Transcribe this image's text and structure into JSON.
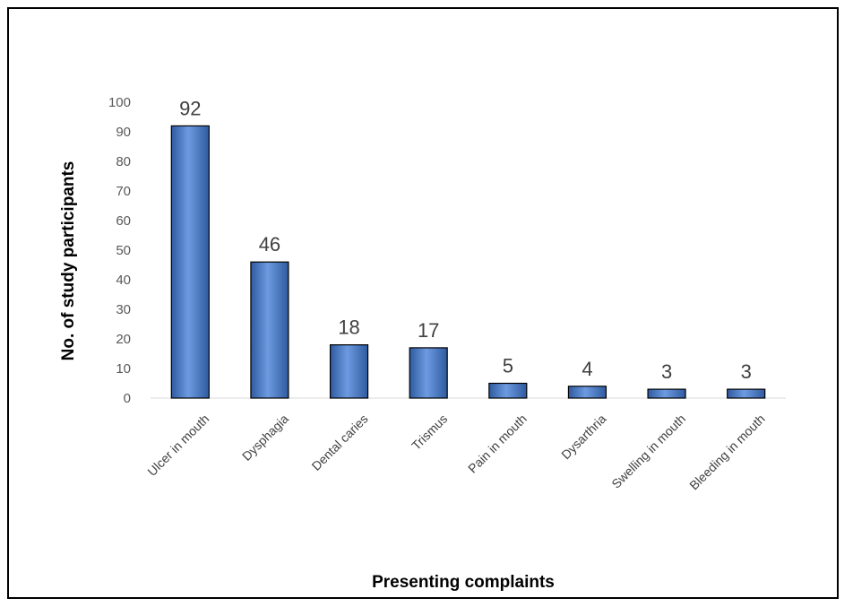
{
  "chart_data": {
    "type": "bar",
    "categories": [
      "Ulcer in mouth",
      "Dysphagia",
      "Dental caries",
      "Trismus",
      "Pain in mouth",
      "Dysarthria",
      "Swelling in mouth",
      "Bleeding in mouth"
    ],
    "values": [
      92,
      46,
      18,
      17,
      5,
      4,
      3,
      3
    ],
    "xlabel": "Presenting complaints",
    "ylabel": "No. of study participants",
    "ylim": [
      0,
      100
    ],
    "yticks": [
      0,
      10,
      20,
      30,
      40,
      50,
      60,
      70,
      80,
      90,
      100
    ],
    "grid": false,
    "legend": "none",
    "colors": {
      "bar": "#4472c4",
      "bar_dark": "#2e5597",
      "bar_light": "#8fb2e8",
      "axis": "#d9d9d9"
    }
  }
}
